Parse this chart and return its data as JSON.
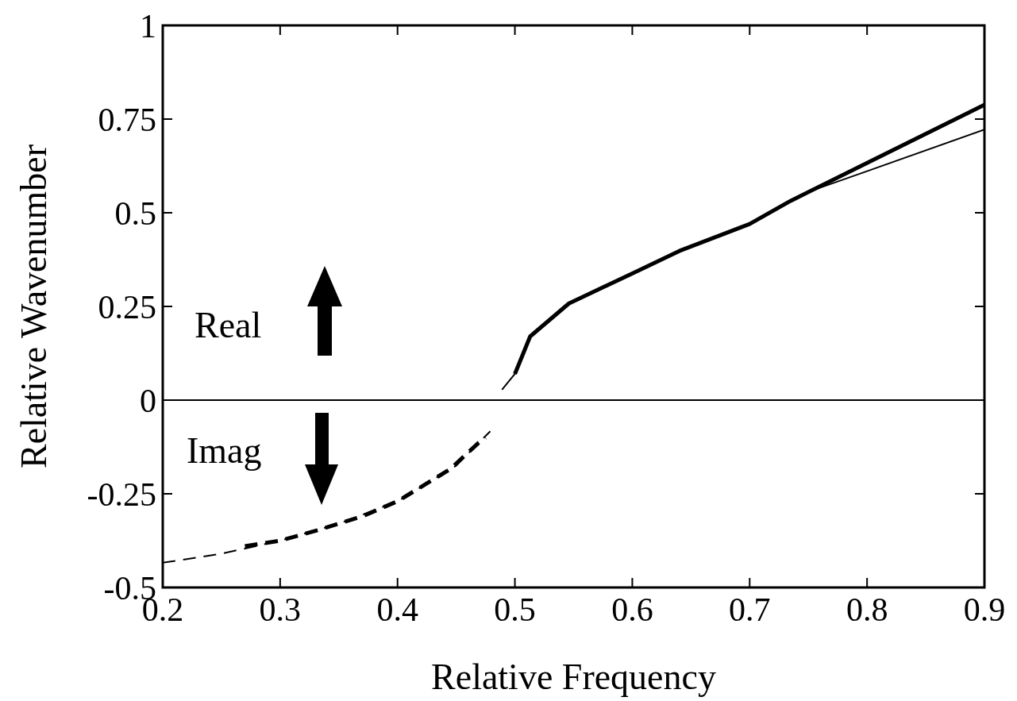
{
  "chart_data": {
    "type": "line",
    "xlabel": "Relative Frequency",
    "ylabel": "Relative Wavenumber",
    "xlim": [
      0.2,
      0.9
    ],
    "xticks": [
      0.2,
      0.3,
      0.4,
      0.5,
      0.6,
      0.7,
      0.8,
      0.9
    ],
    "ylim": [
      -0.5,
      1
    ],
    "yticks": [
      -0.5,
      -0.25,
      0,
      0.25,
      0.5,
      0.75,
      1
    ],
    "grid": false,
    "ref_lines": [
      {
        "axis": "y",
        "value": 0,
        "color": "#000000"
      }
    ],
    "annotations": [
      "Real",
      "Imag"
    ],
    "series": [
      {
        "color": "#000000",
        "line_style": "solid",
        "x": [
          0.489,
          0.5,
          0.513,
          0.546,
          0.6,
          0.64,
          0.7,
          0.751,
          0.8,
          0.9
        ],
        "values": [
          0.028,
          0.07,
          0.17,
          0.258,
          0.338,
          0.398,
          0.47,
          0.557,
          0.611,
          0.722
        ]
      },
      {
        "color": "#000000",
        "line_style": "solid",
        "x": [
          0.5,
          0.513,
          0.546,
          0.6,
          0.64,
          0.7,
          0.735,
          0.8,
          0.9
        ],
        "values": [
          0.07,
          0.17,
          0.258,
          0.338,
          0.398,
          0.47,
          0.532,
          0.633,
          0.788
        ]
      },
      {
        "color": "#000000",
        "line_style": "dashed",
        "x": [
          0.2,
          0.25,
          0.3,
          0.35,
          0.4,
          0.45,
          0.479
        ],
        "values": [
          -0.434,
          -0.41,
          -0.375,
          -0.33,
          -0.27,
          -0.175,
          -0.083
        ]
      },
      {
        "color": "#000000",
        "line_style": "dashed",
        "x": [
          0.27,
          0.3,
          0.332,
          0.37,
          0.4,
          0.445,
          0.469,
          0.475
        ],
        "values": [
          -0.39,
          -0.375,
          -0.347,
          -0.31,
          -0.27,
          -0.184,
          -0.114,
          -0.1
        ]
      }
    ]
  }
}
